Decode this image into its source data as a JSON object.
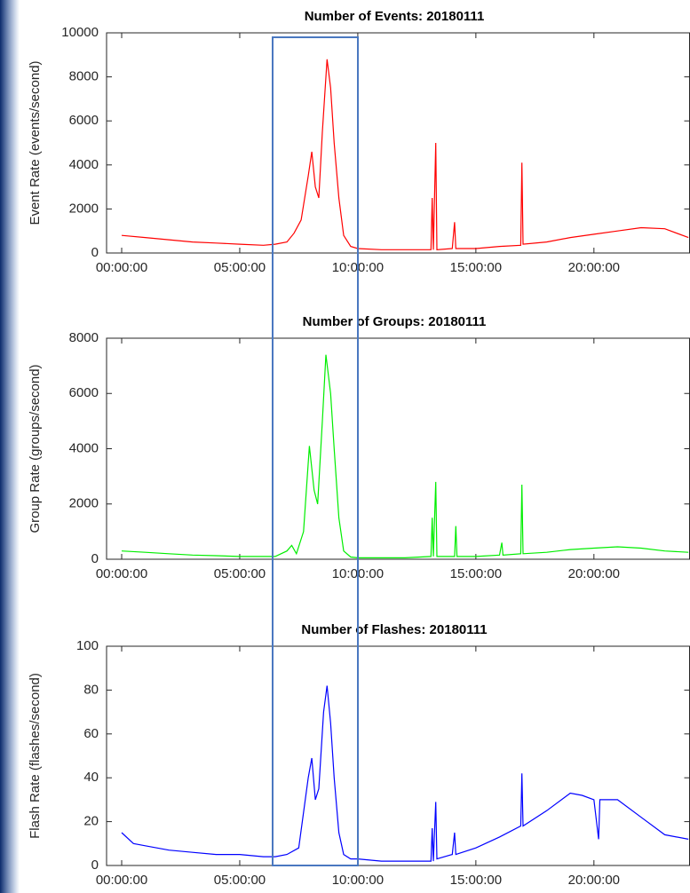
{
  "chart_data": [
    {
      "type": "line",
      "title": "Number of Events: 20180111",
      "y_label": "Event Rate (events/second)",
      "color": "#ff0000",
      "x": [
        0,
        1,
        2,
        3,
        4,
        5,
        6,
        6.5,
        7,
        7.3,
        7.6,
        7.9,
        8.05,
        8.2,
        8.35,
        8.5,
        8.7,
        8.85,
        9.0,
        9.2,
        9.4,
        9.7,
        10,
        11,
        12,
        13.1,
        13.15,
        13.2,
        13.3,
        13.35,
        14.0,
        14.1,
        14.15,
        15,
        16,
        16.9,
        16.95,
        17.0,
        18,
        19,
        20,
        21,
        22,
        23,
        24
      ],
      "values": [
        800,
        700,
        600,
        500,
        450,
        400,
        350,
        400,
        500,
        900,
        1500,
        3500,
        4600,
        3000,
        2500,
        5500,
        8800,
        7500,
        5000,
        2500,
        800,
        300,
        200,
        150,
        150,
        150,
        2500,
        150,
        5000,
        150,
        200,
        1400,
        200,
        200,
        300,
        350,
        4100,
        400,
        500,
        700,
        850,
        1000,
        1150,
        1100,
        700
      ],
      "xlim": [
        -0.64,
        24.05
      ],
      "xticks": [
        {
          "value": 0,
          "label": "00:00:00"
        },
        {
          "value": 5,
          "label": "05:00:00"
        },
        {
          "value": 10,
          "label": "10:00:00"
        },
        {
          "value": 15,
          "label": "15:00:00"
        },
        {
          "value": 20,
          "label": "20:00:00"
        }
      ],
      "ylim": [
        0,
        10000
      ],
      "yticks": [
        0,
        2000,
        4000,
        6000,
        8000,
        10000
      ]
    },
    {
      "type": "line",
      "title": "Number of Groups: 20180111",
      "y_label": "Group Rate (groups/second)",
      "color": "#00ee00",
      "x": [
        0,
        1,
        2,
        3,
        4,
        5,
        6,
        6.5,
        7,
        7.2,
        7.4,
        7.7,
        7.95,
        8.15,
        8.3,
        8.5,
        8.65,
        8.85,
        9.0,
        9.2,
        9.4,
        9.7,
        10,
        11,
        12,
        13.1,
        13.15,
        13.2,
        13.3,
        13.35,
        14.1,
        14.15,
        14.2,
        15,
        16,
        16.1,
        16.15,
        16.9,
        16.95,
        17.0,
        18,
        19,
        20,
        21,
        22,
        23,
        24
      ],
      "values": [
        300,
        250,
        200,
        150,
        130,
        100,
        100,
        100,
        300,
        500,
        200,
        1000,
        4100,
        2500,
        2000,
        5000,
        7400,
        6000,
        4000,
        1500,
        300,
        80,
        50,
        50,
        50,
        100,
        1500,
        100,
        2800,
        100,
        100,
        1200,
        100,
        100,
        150,
        600,
        150,
        200,
        2700,
        200,
        250,
        350,
        400,
        450,
        400,
        300,
        250
      ],
      "xlim": [
        -0.64,
        24.05
      ],
      "xticks": [
        {
          "value": 0,
          "label": "00:00:00"
        },
        {
          "value": 5,
          "label": "05:00:00"
        },
        {
          "value": 10,
          "label": "10:00:00"
        },
        {
          "value": 15,
          "label": "15:00:00"
        },
        {
          "value": 20,
          "label": "20:00:00"
        }
      ],
      "ylim": [
        0,
        8000
      ],
      "yticks": [
        0,
        2000,
        4000,
        6000,
        8000
      ]
    },
    {
      "type": "line",
      "title": "Number of Flashes: 20180111",
      "y_label": "Flash Rate (flashes/second)",
      "color": "#0000ff",
      "x": [
        0,
        0.5,
        1,
        2,
        3,
        4,
        5,
        6,
        6.5,
        7,
        7.5,
        7.9,
        8.05,
        8.2,
        8.35,
        8.55,
        8.7,
        8.85,
        9.0,
        9.2,
        9.4,
        9.7,
        10,
        11,
        12,
        13.1,
        13.15,
        13.2,
        13.3,
        13.35,
        14.0,
        14.1,
        14.15,
        15,
        16,
        16.9,
        16.95,
        17.0,
        18,
        19,
        19.5,
        20,
        20.2,
        20.25,
        21,
        22,
        23,
        24
      ],
      "values": [
        15,
        10,
        9,
        7,
        6,
        5,
        5,
        4,
        4,
        5,
        8,
        40,
        49,
        30,
        35,
        70,
        82,
        65,
        40,
        15,
        5,
        3,
        3,
        2,
        2,
        2,
        17,
        2,
        29,
        3,
        5,
        15,
        5,
        8,
        13,
        18,
        42,
        18,
        25,
        33,
        32,
        30,
        12,
        30,
        30,
        22,
        14,
        12
      ],
      "xlim": [
        -0.64,
        24.05
      ],
      "xticks": [
        {
          "value": 0,
          "label": "00:00:00"
        },
        {
          "value": 5,
          "label": "05:00:00"
        },
        {
          "value": 10,
          "label": "10:00:00"
        },
        {
          "value": 15,
          "label": "15:00:00"
        },
        {
          "value": 20,
          "label": "20:00:00"
        }
      ],
      "ylim": [
        0,
        100
      ],
      "yticks": [
        0,
        20,
        40,
        60,
        80,
        100
      ]
    }
  ]
}
